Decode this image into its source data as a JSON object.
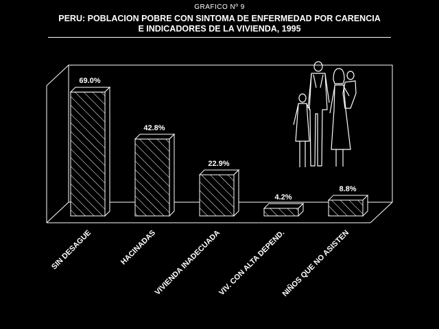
{
  "header": {
    "supertitle": "GRAFICO Nº 9",
    "title_line1": "PERU: POBLACION POBRE CON SINTOMA DE ENFERMEDAD POR CARENCIA",
    "title_line2": "E INDICADORES DE LA VIVIENDA, 1995"
  },
  "chart_data": {
    "type": "bar",
    "categories": [
      "SIN DESAGUE",
      "HACINADAS",
      "VIVIENDA INADECUADA",
      "VIV. CON ALTA DEPEND.",
      "NIÑOS QUE NO ASISTEN"
    ],
    "values": [
      69.0,
      42.8,
      22.9,
      4.2,
      8.8
    ],
    "value_labels": [
      "69.0%",
      "42.8%",
      "22.9%",
      "4.2%",
      "8.8%"
    ],
    "ylim": [
      0,
      100
    ],
    "grid": false,
    "style": {
      "background": "#000000",
      "bar_color": "#000000",
      "hatch_color": "#ffffff",
      "line_color": "#ffffff"
    }
  },
  "illustration": {
    "icon": "family-icon"
  }
}
